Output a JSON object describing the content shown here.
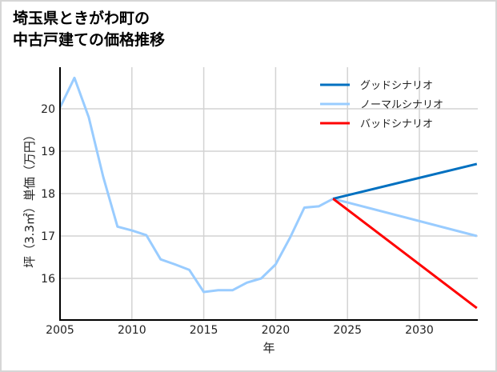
{
  "title": {
    "line1": "埼玉県ときがわ町の",
    "line2": "中古戸建ての価格推移"
  },
  "chart_data": {
    "type": "line",
    "title": "埼玉県ときがわ町の中古戸建ての価格推移",
    "xlabel": "年",
    "ylabel": "坪（3.3㎡）単価（万円）",
    "xlim": [
      2005,
      2034
    ],
    "ylim": [
      15.0,
      21.0
    ],
    "grid": true,
    "legend_position": "upper right",
    "x_ticks": [
      2005,
      2010,
      2015,
      2020,
      2025,
      2030
    ],
    "y_ticks": [
      16,
      17,
      18,
      19,
      20
    ],
    "series": [
      {
        "name": "グッドシナリオ",
        "color": "#0070c0",
        "x": [
          2024,
          2034
        ],
        "values": [
          17.88,
          18.7
        ]
      },
      {
        "name": "ノーマルシナリオ",
        "color": "#99ccff",
        "x": [
          2005,
          2006,
          2007,
          2008,
          2009,
          2010,
          2011,
          2012,
          2013,
          2014,
          2015,
          2016,
          2017,
          2018,
          2019,
          2020,
          2021,
          2022,
          2023,
          2024,
          2034
        ],
        "values": [
          20.03,
          20.73,
          19.8,
          18.4,
          17.22,
          17.13,
          17.02,
          16.45,
          16.33,
          16.2,
          15.68,
          15.72,
          15.72,
          15.9,
          16.0,
          16.33,
          16.96,
          17.67,
          17.7,
          17.88,
          17.0
        ]
      },
      {
        "name": "バッドシナリオ",
        "color": "#ff0000",
        "x": [
          2024,
          2034
        ],
        "values": [
          17.88,
          15.3
        ]
      }
    ]
  },
  "axes": {
    "xlabel": "年",
    "ylabel": "坪（3.3㎡）単価（万円）",
    "x_ticks": [
      "2005",
      "2010",
      "2015",
      "2020",
      "2025",
      "2030"
    ],
    "y_ticks": [
      "16",
      "17",
      "18",
      "19",
      "20"
    ]
  },
  "legend": [
    {
      "label": "グッドシナリオ",
      "color": "#0070c0"
    },
    {
      "label": "ノーマルシナリオ",
      "color": "#99ccff"
    },
    {
      "label": "バッドシナリオ",
      "color": "#ff0000"
    }
  ]
}
